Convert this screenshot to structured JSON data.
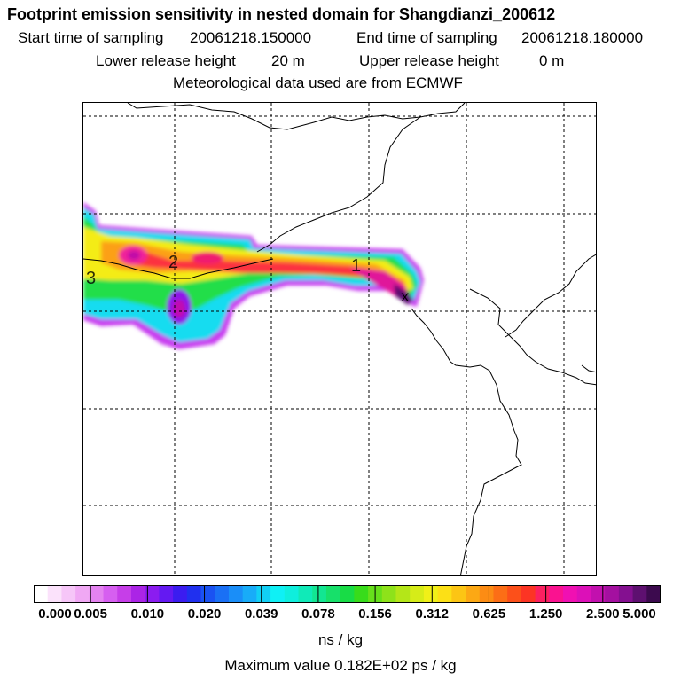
{
  "header": {
    "title": "Footprint emission sensitivity in nested domain for Shangdianzi_200612",
    "start_label": "Start time of sampling",
    "start_value": "20061218.150000",
    "end_label": "End time of sampling",
    "end_value": "20061218.180000",
    "lower_label": "Lower release height",
    "lower_value": "20 m",
    "upper_label": "Upper release height",
    "upper_value": "0 m",
    "met_source": "Meteorological data used are from ECMWF"
  },
  "map": {
    "trajectory_labels": [
      "1",
      "2",
      "3"
    ],
    "max_marker": "X"
  },
  "colorbar": {
    "tick_labels": [
      "0.000",
      "0.005",
      "0.010",
      "0.020",
      "0.039",
      "0.078",
      "0.156",
      "0.312",
      "0.625",
      "1.250",
      "2.500",
      "5.000"
    ],
    "colors": [
      "#ffffff",
      "#fbe2fb",
      "#f6c6f8",
      "#f0a8f4",
      "#e483f0",
      "#d65ff0",
      "#c63ee8",
      "#ab24e6",
      "#8b1cf0",
      "#6419f2",
      "#3b1cf0",
      "#2030ef",
      "#1a52f2",
      "#1a70f5",
      "#1a8ef8",
      "#18acf8",
      "#12cff5",
      "#0ff0f5",
      "#0feedd",
      "#10eab8",
      "#12e692",
      "#17e06a",
      "#18dc46",
      "#38dc1b",
      "#66e01b",
      "#8ee21a",
      "#b4e618",
      "#d6ec18",
      "#f0f018",
      "#fce016",
      "#fcc514",
      "#fca814",
      "#fc8c14",
      "#fc6e16",
      "#fc501a",
      "#fc3424",
      "#fc2060",
      "#fa1290",
      "#f010b2",
      "#dc10b8",
      "#c210ae",
      "#a410a0",
      "#841090",
      "#5e1070",
      "#3c0a4e"
    ],
    "units": "ns / kg",
    "max_value_text": "Maximum value  0.182E+02 ps / kg"
  }
}
